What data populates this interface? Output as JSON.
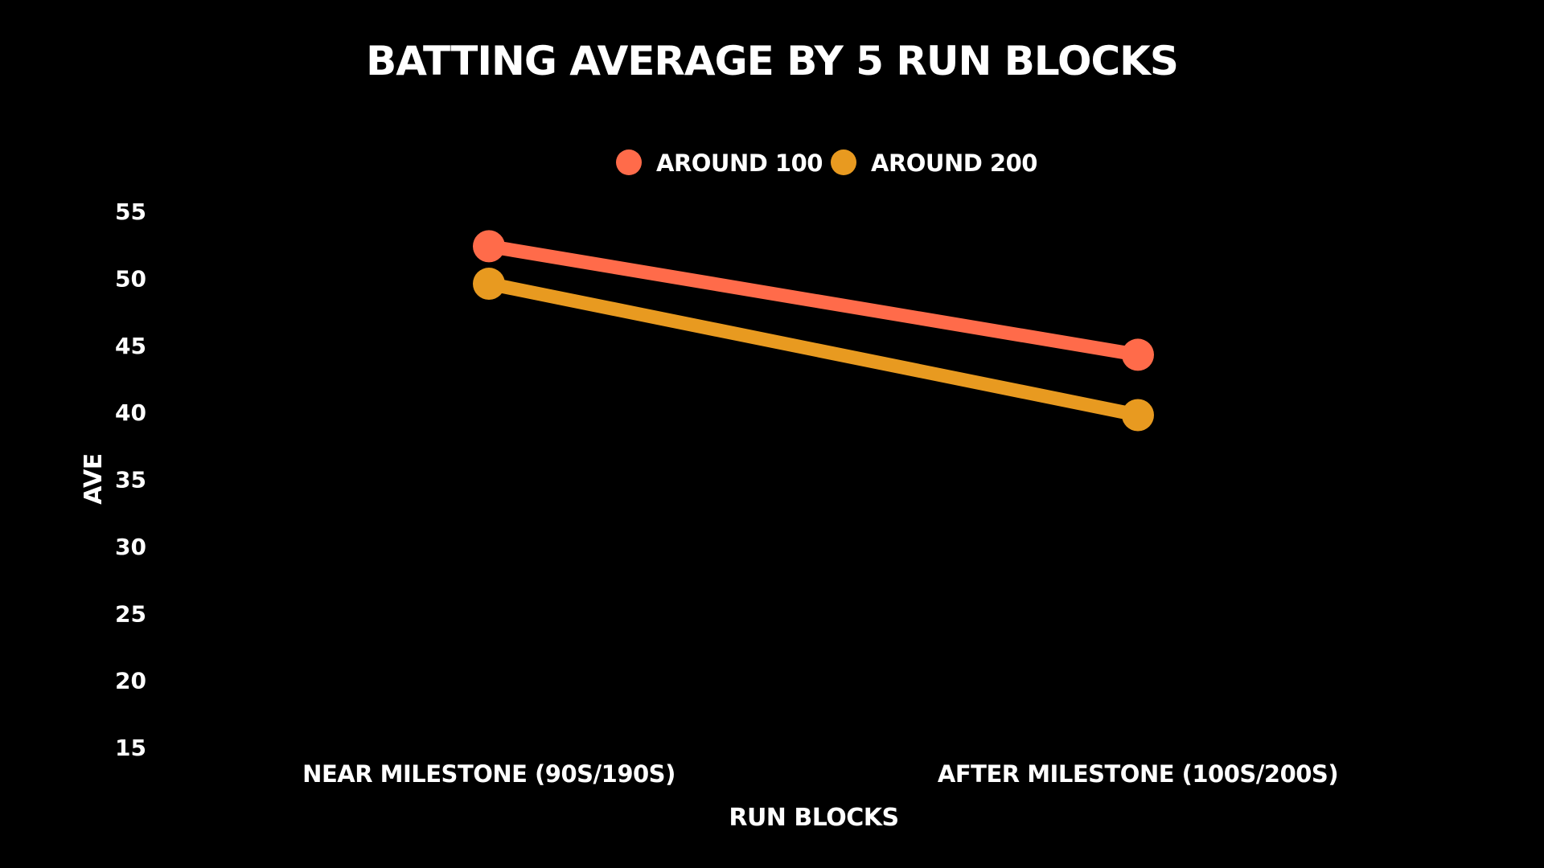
{
  "chart_data": {
    "type": "line",
    "title": "BATTING AVERAGE BY 5 RUN BLOCKS",
    "xlabel": "RUN BLOCKS",
    "ylabel": "AVE",
    "categories": [
      "NEAR MILESTONE (90S/190S)",
      "AFTER MILESTONE (100S/200S)"
    ],
    "ylim": [
      15,
      55
    ],
    "yticks": [
      55,
      50,
      45,
      40,
      35,
      30,
      25,
      20,
      15
    ],
    "grid": false,
    "legend_position": "top-center",
    "series": [
      {
        "name": "AROUND 100",
        "color": "#FF6B4A",
        "values": [
          52.4,
          44.3
        ]
      },
      {
        "name": "AROUND 200",
        "color": "#E89A20",
        "values": [
          49.6,
          39.8
        ]
      }
    ]
  }
}
